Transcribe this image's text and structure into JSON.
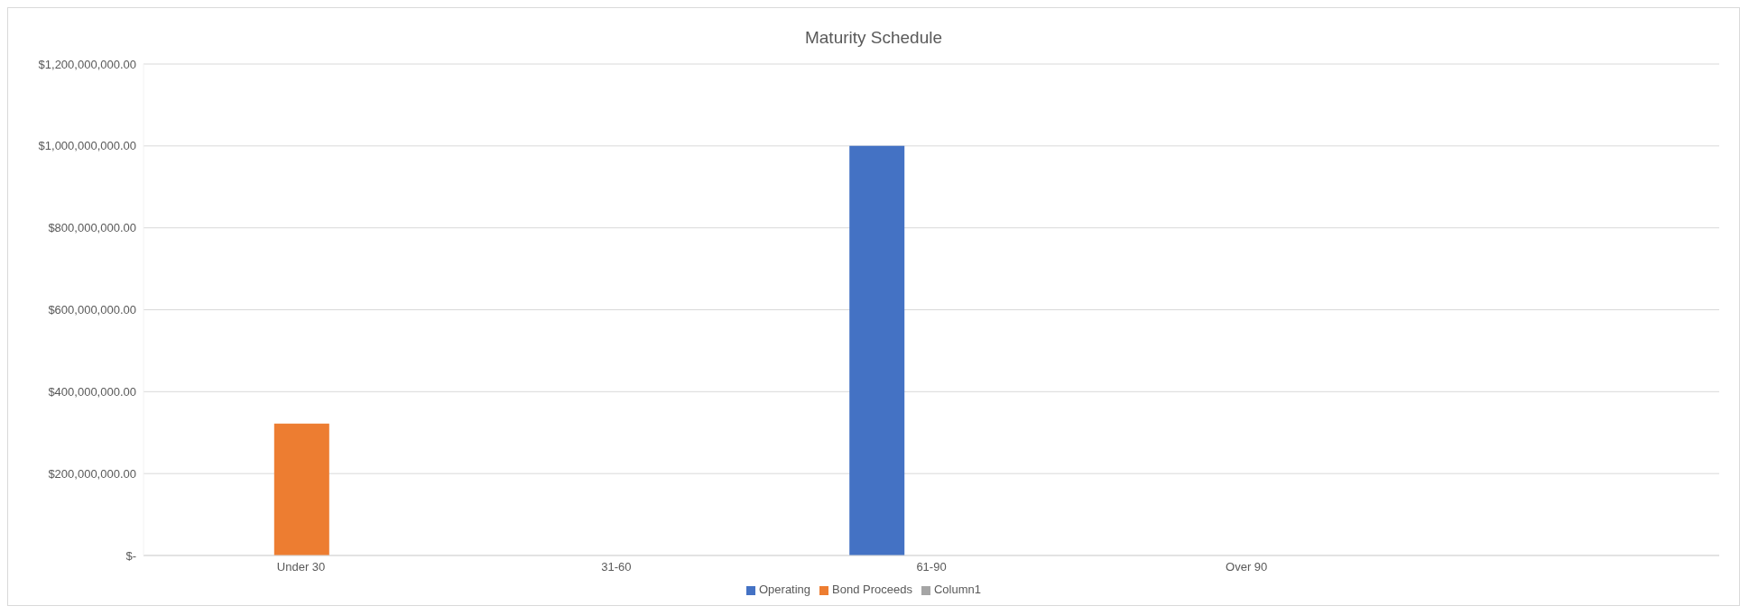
{
  "chart_data": {
    "type": "bar",
    "title": "Maturity Schedule",
    "categories": [
      "Under 30",
      "31-60",
      "61-90",
      "Over 90",
      null
    ],
    "series": [
      {
        "name": "Operating",
        "color": "#4472c4",
        "values": [
          null,
          null,
          1000000000,
          null,
          null
        ]
      },
      {
        "name": "Bond Proceeds",
        "color": "#ed7d31",
        "values": [
          322000000,
          null,
          null,
          null,
          null
        ]
      },
      {
        "name": "Column1",
        "color": "#a5a5a5",
        "values": [
          null,
          null,
          null,
          null,
          null
        ]
      }
    ],
    "ylim": [
      0,
      1200000000
    ],
    "yticks": [
      {
        "value": 0,
        "label": "$-"
      },
      {
        "value": 200000000,
        "label": "$200,000,000.00"
      },
      {
        "value": 400000000,
        "label": "$400,000,000.00"
      },
      {
        "value": 600000000,
        "label": "$600,000,000.00"
      },
      {
        "value": 800000000,
        "label": "$800,000,000.00"
      },
      {
        "value": 1000000000,
        "label": "$1,000,000,000.00"
      },
      {
        "value": 1200000000,
        "label": "$1,200,000,000.00"
      }
    ],
    "grid": "y",
    "legend": "bottom"
  }
}
